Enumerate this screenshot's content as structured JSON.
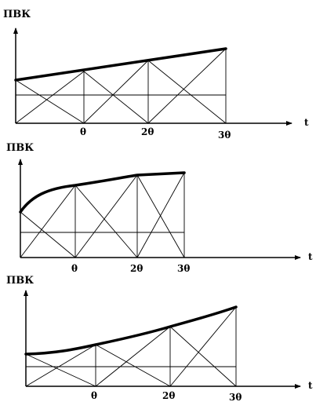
{
  "panels": [
    {
      "y_label": "ПВК",
      "x_label": "t",
      "ticks": [
        "θ",
        "2θ",
        "3θ"
      ],
      "curve": "linear increase"
    },
    {
      "y_label": "ПВК",
      "x_label": "t",
      "ticks": [
        "θ",
        "2θ",
        "3θ"
      ],
      "curve": "concave increase (saturating)"
    },
    {
      "y_label": "ПВК",
      "x_label": "t",
      "ticks": [
        "θ",
        "2θ",
        "3θ"
      ],
      "curve": "convex increase (accelerating)"
    }
  ]
}
